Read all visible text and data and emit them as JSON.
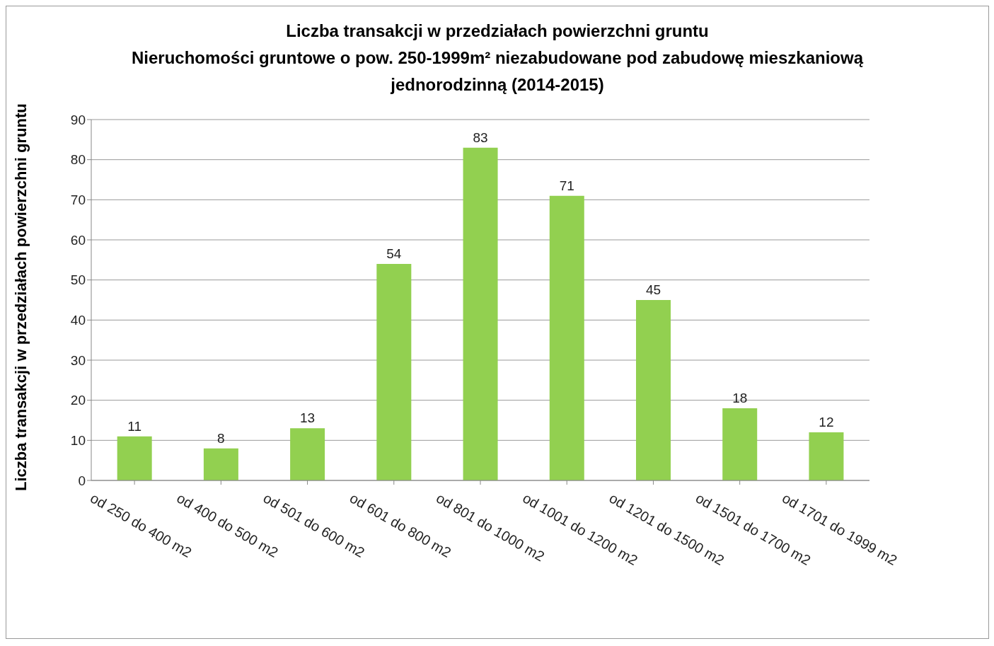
{
  "chart_data": {
    "type": "bar",
    "title": "Liczba transakcji w przedziałach powierzchni gruntu",
    "subtitle": "Nieruchomości gruntowe o pow. 250-1999m² niezabudowane pod zabudowę mieszkaniową jednorodzinną (2014-2015)",
    "ylabel": "Liczba transakcji w przedziałach powierzchni gruntu",
    "categories": [
      "od 250 do 400 m2",
      "od 400 do 500 m2",
      "od 501 do 600 m2",
      "od 601 do 800 m2",
      "od 801 do 1000 m2",
      "od 1001 do 1200 m2",
      "od 1201 do 1500 m2",
      "od 1501 do 1700 m2",
      "od 1701 do 1999 m2"
    ],
    "values": [
      11,
      8,
      13,
      54,
      83,
      71,
      45,
      18,
      12
    ],
    "color": "#92d050",
    "ylim": [
      0,
      90
    ],
    "yticks": [
      0,
      10,
      20,
      30,
      40,
      50,
      60,
      70,
      80,
      90
    ],
    "grid": "y",
    "data_labels": true
  }
}
